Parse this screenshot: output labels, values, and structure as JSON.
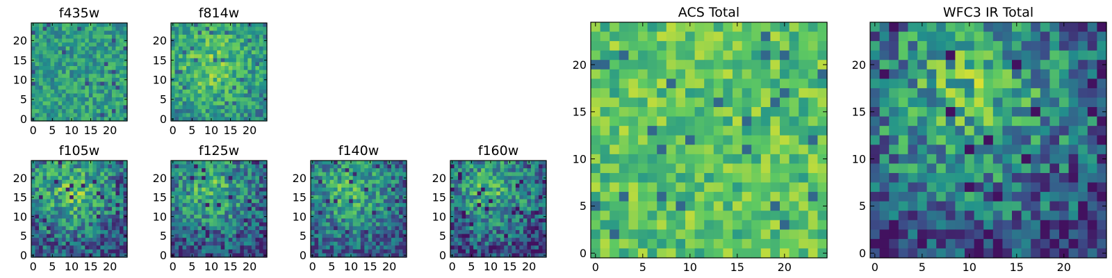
{
  "figure": {
    "colormap": "viridis",
    "colors": [
      "#440154",
      "#3b528b",
      "#21918c",
      "#5ec962",
      "#fde725"
    ],
    "grid": false
  },
  "chart_data": [
    {
      "type": "heatmap",
      "title": "f435w",
      "grid_size": [
        25,
        25
      ],
      "x_ticks": [
        "0",
        "5",
        "10",
        "15",
        "20"
      ],
      "y_ticks": [
        "0",
        "5",
        "10",
        "15",
        "20"
      ],
      "xlim": [
        0,
        24
      ],
      "ylim": [
        0,
        24
      ],
      "pattern": "noise",
      "level_range": [
        0.22,
        0.82
      ]
    },
    {
      "type": "heatmap",
      "title": "f814w",
      "grid_size": [
        25,
        25
      ],
      "x_ticks": [
        "0",
        "5",
        "10",
        "15",
        "20"
      ],
      "y_ticks": [
        "0",
        "5",
        "10",
        "15",
        "20"
      ],
      "xlim": [
        0,
        24
      ],
      "ylim": [
        0,
        24
      ],
      "pattern": "central-bright",
      "level_range": [
        0.28,
        0.92
      ]
    },
    {
      "type": "heatmap",
      "title": "f105w",
      "grid_size": [
        25,
        25
      ],
      "x_ticks": [
        "0",
        "5",
        "10",
        "15",
        "20"
      ],
      "y_ticks": [
        "0",
        "5",
        "10",
        "15",
        "20"
      ],
      "xlim": [
        0,
        24
      ],
      "ylim": [
        0,
        24
      ],
      "pattern": "upper-bright",
      "level_range": [
        0.1,
        0.95
      ]
    },
    {
      "type": "heatmap",
      "title": "f125w",
      "grid_size": [
        25,
        25
      ],
      "x_ticks": [
        "0",
        "5",
        "10",
        "15",
        "20"
      ],
      "y_ticks": [
        "0",
        "5",
        "10",
        "15",
        "20"
      ],
      "xlim": [
        0,
        24
      ],
      "ylim": [
        0,
        24
      ],
      "pattern": "upper-bright",
      "level_range": [
        0.08,
        0.9
      ]
    },
    {
      "type": "heatmap",
      "title": "f140w",
      "grid_size": [
        25,
        25
      ],
      "x_ticks": [
        "0",
        "5",
        "10",
        "15",
        "20"
      ],
      "y_ticks": [
        "0",
        "5",
        "10",
        "15",
        "20"
      ],
      "xlim": [
        0,
        24
      ],
      "ylim": [
        0,
        24
      ],
      "pattern": "upper-bright",
      "level_range": [
        0.12,
        0.88
      ]
    },
    {
      "type": "heatmap",
      "title": "f160w",
      "grid_size": [
        25,
        25
      ],
      "x_ticks": [
        "0",
        "5",
        "10",
        "15",
        "20"
      ],
      "y_ticks": [
        "0",
        "5",
        "10",
        "15",
        "20"
      ],
      "xlim": [
        0,
        24
      ],
      "ylim": [
        0,
        24
      ],
      "pattern": "upper-bright",
      "level_range": [
        0.05,
        0.9
      ]
    },
    {
      "type": "heatmap",
      "title": "ACS Total",
      "grid_size": [
        25,
        25
      ],
      "x_ticks": [
        "0",
        "5",
        "10",
        "15",
        "20"
      ],
      "y_ticks": [
        "0",
        "5",
        "10",
        "15",
        "20"
      ],
      "xlim": [
        0,
        24
      ],
      "ylim": [
        0,
        24
      ],
      "pattern": "noise-bright",
      "level_range": [
        0.3,
        0.9
      ]
    },
    {
      "type": "heatmap",
      "title": "WFC3 IR Total",
      "grid_size": [
        25,
        25
      ],
      "x_ticks": [
        "0",
        "5",
        "10",
        "15",
        "20"
      ],
      "y_ticks": [
        "0",
        "5",
        "10",
        "15",
        "20"
      ],
      "xlim": [
        0,
        24
      ],
      "ylim": [
        0,
        24
      ],
      "pattern": "upper-bright",
      "level_range": [
        0.05,
        0.95
      ]
    }
  ]
}
